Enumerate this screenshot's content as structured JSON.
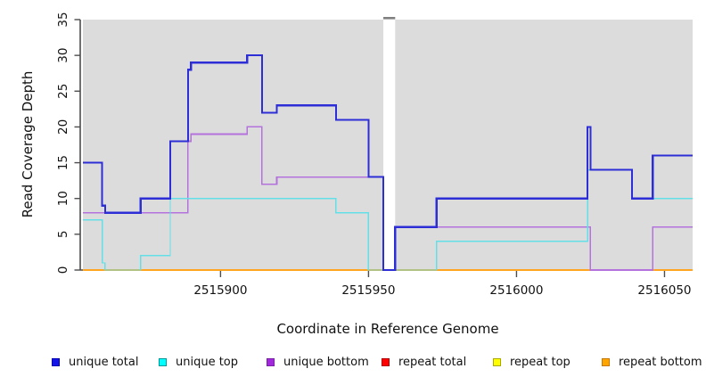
{
  "figure": {
    "background": "#FFFFFF"
  },
  "chart_data": {
    "type": "line",
    "subtype": "step-coverage",
    "title": "",
    "xlabel": "Coordinate in Reference Genome",
    "ylabel": "Read Coverage Depth",
    "xlim": [
      2515853.5,
      2516059.5
    ],
    "ylim": [
      0,
      35
    ],
    "grid": false,
    "panel_bg": "#DCDCDC",
    "axis_color": "#4D4D4D",
    "tick_label_color": "#111111",
    "x_ticks": [
      {
        "value": 2515900,
        "label": "2515900"
      },
      {
        "value": 2515950,
        "label": "2515950"
      },
      {
        "value": 2516000,
        "label": "2516000"
      },
      {
        "value": 2516050,
        "label": "2516050"
      }
    ],
    "y_ticks": [
      {
        "value": 0,
        "label": "0"
      },
      {
        "value": 5,
        "label": "5"
      },
      {
        "value": 10,
        "label": "10"
      },
      {
        "value": 15,
        "label": "15"
      },
      {
        "value": 20,
        "label": "20"
      },
      {
        "value": 25,
        "label": "25"
      },
      {
        "value": 30,
        "label": "30"
      },
      {
        "value": 35,
        "label": "35"
      }
    ],
    "gap_region": {
      "x_start": 2515955,
      "x_end": 2515959,
      "fill": "#FFFFFF",
      "cap_color": "#808080"
    },
    "series": [
      {
        "name": "repeat total",
        "color": "#DD2222",
        "width": 1.4,
        "points": [
          [
            2515853.5,
            0
          ],
          [
            2516059.5,
            0
          ]
        ]
      },
      {
        "name": "repeat top",
        "color": "#F0F000",
        "width": 1.4,
        "points": [
          [
            2515853.5,
            0
          ],
          [
            2516059.5,
            0
          ]
        ]
      },
      {
        "name": "repeat bottom",
        "color": "#FFA520",
        "width": 2,
        "points": [
          [
            2515853.5,
            0
          ],
          [
            2516059.5,
            0
          ]
        ]
      },
      {
        "name": "unique bottom",
        "color": "#B473DC",
        "width": 1.6,
        "points": [
          [
            2515853.5,
            8
          ],
          [
            2515889,
            18
          ],
          [
            2515890,
            19
          ],
          [
            2515909,
            20
          ],
          [
            2515914,
            12
          ],
          [
            2515919,
            13
          ],
          [
            2515955,
            0
          ],
          [
            2515959,
            6
          ],
          [
            2516025,
            0
          ],
          [
            2516046,
            6
          ],
          [
            2516059.5,
            6
          ]
        ]
      },
      {
        "name": "unique top",
        "color": "#63DFE7",
        "width": 1.4,
        "points": [
          [
            2515853.5,
            7
          ],
          [
            2515860,
            1
          ],
          [
            2515861,
            0
          ],
          [
            2515873,
            2
          ],
          [
            2515883,
            10
          ],
          [
            2515939,
            8
          ],
          [
            2515950,
            0
          ],
          [
            2515973,
            4
          ],
          [
            2516024,
            14
          ],
          [
            2516039,
            10
          ],
          [
            2516059.5,
            10
          ]
        ]
      },
      {
        "name": "unique total",
        "color": "#2E2ED6",
        "width": 2.2,
        "points": [
          [
            2515853.5,
            15
          ],
          [
            2515860,
            9
          ],
          [
            2515861,
            8
          ],
          [
            2515873,
            10
          ],
          [
            2515883,
            18
          ],
          [
            2515889,
            28
          ],
          [
            2515890,
            29
          ],
          [
            2515909,
            30
          ],
          [
            2515914,
            22
          ],
          [
            2515919,
            23
          ],
          [
            2515939,
            21
          ],
          [
            2515950,
            13
          ],
          [
            2515955,
            0
          ],
          [
            2515959,
            6
          ],
          [
            2515973,
            10
          ],
          [
            2516024,
            20
          ],
          [
            2516025,
            14
          ],
          [
            2516039,
            10
          ],
          [
            2516046,
            16
          ],
          [
            2516059.5,
            16
          ]
        ]
      }
    ]
  },
  "legend": {
    "items": [
      {
        "label": "unique total",
        "fill": "#1414E6",
        "border": "#0000B4"
      },
      {
        "label": "unique top",
        "fill": "#00FFFF",
        "border": "#009999"
      },
      {
        "label": "unique bottom",
        "fill": "#A228DC",
        "border": "#7A1FA8"
      },
      {
        "label": "repeat total",
        "fill": "#FF0000",
        "border": "#B40000"
      },
      {
        "label": "repeat top",
        "fill": "#FFFF00",
        "border": "#AAAA00"
      },
      {
        "label": "repeat bottom",
        "fill": "#FFA500",
        "border": "#C87800"
      }
    ]
  }
}
